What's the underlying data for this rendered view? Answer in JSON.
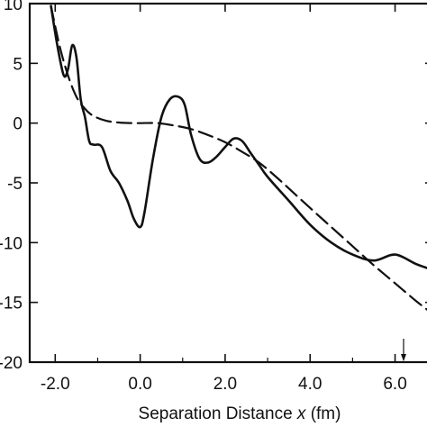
{
  "chart_data": {
    "type": "line",
    "xlabel_prefix": "Separation Distance ",
    "xlabel_var": "x",
    "xlabel_suffix": " (fm)",
    "ylabel": "",
    "xlim": [
      -2.6,
      6.9
    ],
    "ylim": [
      -20,
      10
    ],
    "x_ticks": [
      -2.0,
      0.0,
      2.0,
      4.0,
      6.0
    ],
    "x_tick_labels": [
      "-2.0",
      "0.0",
      "2.0",
      "4.0",
      "6.0"
    ],
    "y_ticks": [
      10,
      5,
      0,
      -5,
      -10,
      -15,
      -20
    ],
    "y_tick_labels": [
      "10",
      "5",
      "0",
      "-5",
      "-10",
      "-15",
      "-20"
    ],
    "grid": false,
    "series": [
      {
        "style": "solid",
        "color": "#111111",
        "x": [
          -2.1,
          -1.95,
          -1.8,
          -1.7,
          -1.6,
          -1.5,
          -1.4,
          -1.3,
          -1.2,
          -1.1,
          -0.9,
          -0.7,
          -0.5,
          -0.3,
          -0.15,
          0.0,
          0.1,
          0.3,
          0.5,
          0.7,
          0.9,
          1.05,
          1.2,
          1.4,
          1.6,
          1.8,
          2.0,
          2.2,
          2.4,
          2.6,
          2.8,
          3.0,
          3.5,
          4.0,
          4.5,
          5.0,
          5.5,
          6.0,
          6.5,
          6.9
        ],
        "y": [
          9.8,
          6.5,
          4.0,
          4.5,
          6.5,
          5.5,
          2.0,
          0.5,
          -1.5,
          -1.8,
          -2.0,
          -4.0,
          -5.0,
          -6.5,
          -8.0,
          -8.7,
          -7.5,
          -3.0,
          0.5,
          2.0,
          2.2,
          1.5,
          -1.0,
          -3.0,
          -3.3,
          -2.8,
          -2.0,
          -1.3,
          -1.5,
          -2.5,
          -3.5,
          -4.5,
          -6.5,
          -8.5,
          -10.0,
          -11.0,
          -11.5,
          -11.0,
          -11.8,
          -12.3
        ]
      },
      {
        "style": "dashed",
        "color": "#111111",
        "x": [
          -2.1,
          -1.9,
          -1.7,
          -1.5,
          -1.3,
          -1.1,
          -0.8,
          -0.5,
          -0.2,
          0.0,
          0.4,
          0.8,
          1.2,
          1.6,
          2.0,
          2.4,
          2.8,
          3.2,
          3.6,
          4.0,
          4.5,
          5.0,
          5.5,
          6.0,
          6.5,
          6.9
        ],
        "y": [
          9.8,
          6.5,
          4.0,
          2.2,
          1.2,
          0.6,
          0.2,
          0.05,
          0.0,
          0.0,
          0.0,
          -0.2,
          -0.5,
          -1.0,
          -1.6,
          -2.4,
          -3.3,
          -4.5,
          -5.8,
          -7.1,
          -8.7,
          -10.3,
          -11.9,
          -13.4,
          -14.9,
          -16.0
        ]
      }
    ]
  }
}
